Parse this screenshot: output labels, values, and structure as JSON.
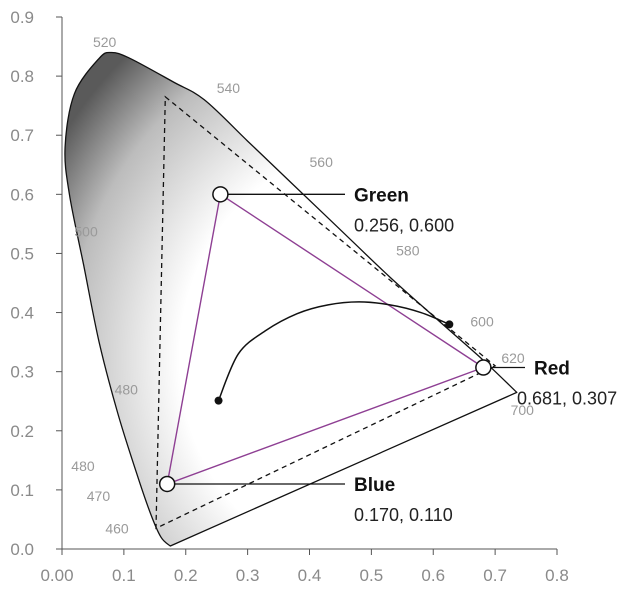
{
  "chart_data": {
    "type": "scatter",
    "xlim": [
      0.0,
      0.8
    ],
    "ylim": [
      0.0,
      0.9
    ],
    "x_ticks": [
      "0.00",
      "0.1",
      "0.2",
      "0.3",
      "0.4",
      "0.5",
      "0.6",
      "0.7",
      "0.8"
    ],
    "y_ticks": [
      "0.0",
      "0.1",
      "0.2",
      "0.3",
      "0.4",
      "0.5",
      "0.6",
      "0.7",
      "0.8",
      "0.9"
    ],
    "spectral_locus": [
      [
        0.175,
        0.005
      ],
      [
        0.16,
        0.02
      ],
      [
        0.143,
        0.06
      ],
      [
        0.12,
        0.13
      ],
      [
        0.09,
        0.23
      ],
      [
        0.06,
        0.35
      ],
      [
        0.035,
        0.48
      ],
      [
        0.012,
        0.6
      ],
      [
        0.005,
        0.68
      ],
      [
        0.02,
        0.77
      ],
      [
        0.06,
        0.83
      ],
      [
        0.08,
        0.84
      ],
      [
        0.11,
        0.83
      ],
      [
        0.18,
        0.79
      ],
      [
        0.23,
        0.76
      ],
      [
        0.3,
        0.69
      ],
      [
        0.37,
        0.62
      ],
      [
        0.45,
        0.54
      ],
      [
        0.53,
        0.46
      ],
      [
        0.61,
        0.385
      ],
      [
        0.68,
        0.32
      ],
      [
        0.735,
        0.265
      ]
    ],
    "wavelength_labels": [
      {
        "text": "520",
        "x": 0.05,
        "y": 0.858
      },
      {
        "text": "540",
        "x": 0.25,
        "y": 0.78
      },
      {
        "text": "560",
        "x": 0.4,
        "y": 0.655
      },
      {
        "text": "580",
        "x": 0.54,
        "y": 0.505
      },
      {
        "text": "600",
        "x": 0.66,
        "y": 0.385
      },
      {
        "text": "620",
        "x": 0.71,
        "y": 0.323
      },
      {
        "text": "700",
        "x": 0.725,
        "y": 0.235
      },
      {
        "text": "500",
        "x": 0.02,
        "y": 0.537
      },
      {
        "text": "480",
        "x": 0.085,
        "y": 0.27
      },
      {
        "text": "480",
        "x": 0.015,
        "y": 0.14
      },
      {
        "text": "470",
        "x": 0.04,
        "y": 0.09
      },
      {
        "text": "460",
        "x": 0.07,
        "y": 0.035
      }
    ],
    "dashed_triangle": [
      [
        0.167,
        0.765
      ],
      [
        0.7,
        0.31
      ],
      [
        0.152,
        0.035
      ]
    ],
    "primaries": [
      {
        "name": "Green",
        "coords": "0.256, 0.600",
        "x": 0.256,
        "y": 0.6
      },
      {
        "name": "Red",
        "coords": "0.681, 0.307",
        "x": 0.681,
        "y": 0.307
      },
      {
        "name": "Blue",
        "coords": "0.170, 0.110",
        "x": 0.17,
        "y": 0.11
      }
    ],
    "planckian_locus": [
      [
        0.253,
        0.251
      ],
      [
        0.285,
        0.33
      ],
      [
        0.33,
        0.37
      ],
      [
        0.38,
        0.398
      ],
      [
        0.43,
        0.413
      ],
      [
        0.48,
        0.418
      ],
      [
        0.53,
        0.413
      ],
      [
        0.58,
        0.4
      ],
      [
        0.626,
        0.38
      ]
    ],
    "colors": {
      "gamut_line": "#8e3f93",
      "outline": "#111111",
      "locus_fill_light": "#ffffff",
      "locus_fill_dark": "#5a5a5a"
    }
  }
}
